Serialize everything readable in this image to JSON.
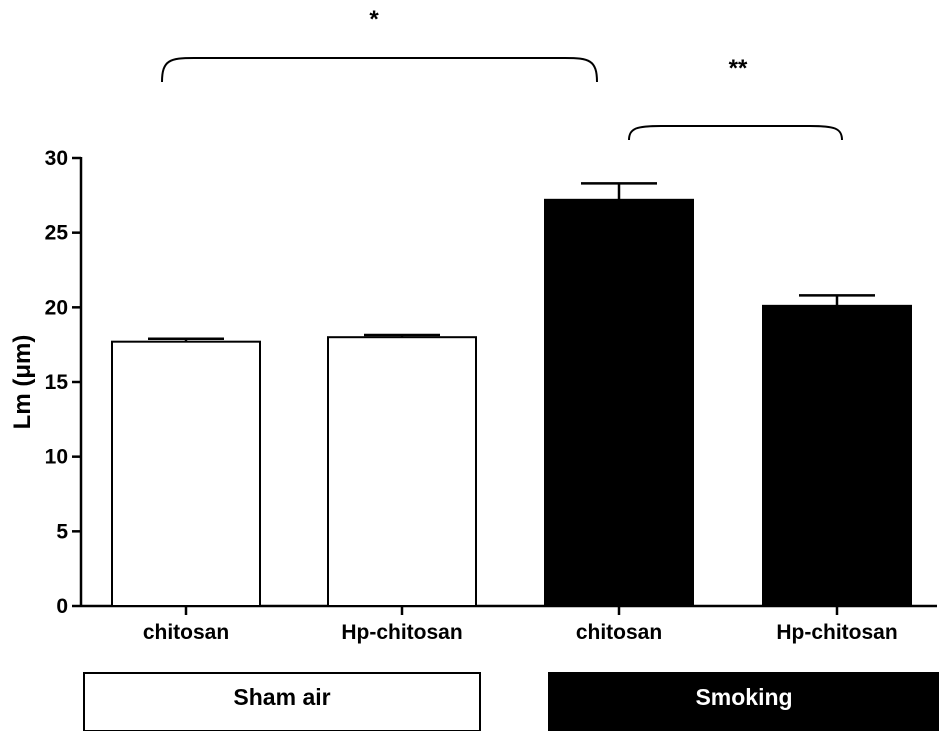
{
  "chart_data": {
    "type": "bar",
    "title": "",
    "xlabel": "",
    "ylabel": "Lm (μm)",
    "ylim": [
      0,
      30
    ],
    "yticks": [
      0,
      5,
      10,
      15,
      20,
      25,
      30
    ],
    "categories": [
      "chitosan",
      "Hp-chitosan",
      "chitosan",
      "Hp-chitosan"
    ],
    "values": [
      17.7,
      18.0,
      27.2,
      20.1
    ],
    "errors": [
      0.2,
      0.15,
      1.1,
      0.7
    ],
    "bar_colors": [
      "#ffffff",
      "#ffffff",
      "#000000",
      "#000000"
    ],
    "groups": [
      {
        "label": "Sham air",
        "fill": "#ffffff",
        "text_color": "#000000",
        "bars": [
          0,
          1
        ]
      },
      {
        "label": "Smoking",
        "fill": "#000000",
        "text_color": "#ffffff",
        "bars": [
          2,
          3
        ]
      }
    ],
    "significance": [
      {
        "label": "*",
        "from": 0,
        "to": 2
      },
      {
        "label": "**",
        "from": 2,
        "to": 3
      }
    ],
    "grid": false,
    "legend": "none"
  }
}
